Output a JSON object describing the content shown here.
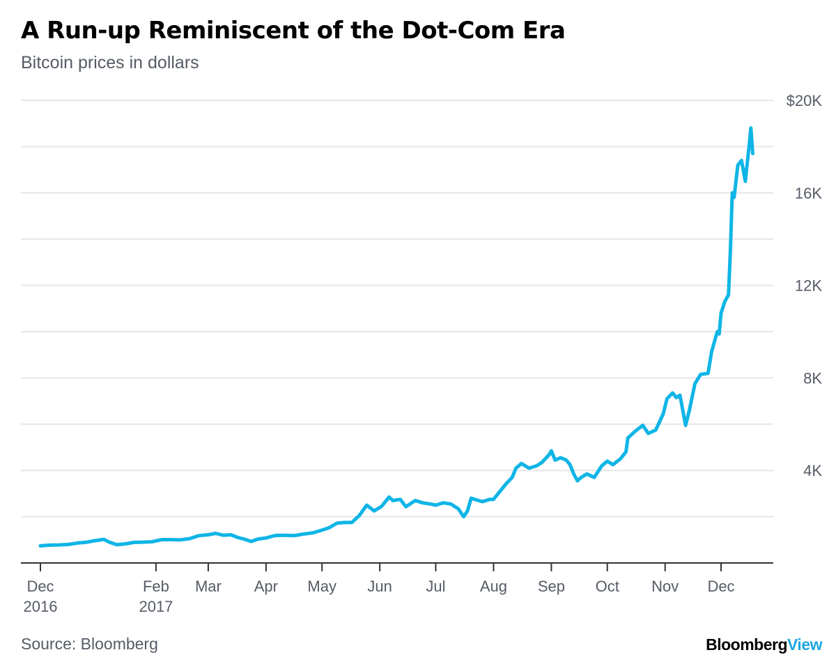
{
  "header": {
    "title": "A Run-up Reminiscent of the Dot-Com Era",
    "subtitle": "Bitcoin prices in dollars"
  },
  "footer": {
    "source": "Source: Bloomberg",
    "brand_part1": "Bloomberg",
    "brand_part2": "View"
  },
  "colors": {
    "line": "#0fb5e6",
    "grid": "#e6e6e9",
    "axis": "#333333",
    "text": "#555b66",
    "brand_accent": "#1fa6e0"
  },
  "chart_data": {
    "type": "line",
    "title": "A Run-up Reminiscent of the Dot-Com Era",
    "subtitle": "Bitcoin prices in dollars",
    "xlabel": "",
    "ylabel": "",
    "ylim": [
      0,
      20000
    ],
    "y_axis_position": "right",
    "grid": true,
    "y_ticks": [
      {
        "value": 4000,
        "label": "4K"
      },
      {
        "value": 8000,
        "label": "8K"
      },
      {
        "value": 12000,
        "label": "12K"
      },
      {
        "value": 16000,
        "label": "16K"
      },
      {
        "value": 20000,
        "label": "$20K"
      }
    ],
    "x_ticks": [
      {
        "date": "2016-12-01",
        "label": "Dec",
        "sublabel": "2016"
      },
      {
        "date": "2017-02-01",
        "label": "Feb",
        "sublabel": "2017"
      },
      {
        "date": "2017-03-01",
        "label": "Mar",
        "sublabel": ""
      },
      {
        "date": "2017-04-01",
        "label": "Apr",
        "sublabel": ""
      },
      {
        "date": "2017-05-01",
        "label": "May",
        "sublabel": ""
      },
      {
        "date": "2017-06-01",
        "label": "Jun",
        "sublabel": ""
      },
      {
        "date": "2017-07-01",
        "label": "Jul",
        "sublabel": ""
      },
      {
        "date": "2017-08-01",
        "label": "Aug",
        "sublabel": ""
      },
      {
        "date": "2017-09-01",
        "label": "Sep",
        "sublabel": ""
      },
      {
        "date": "2017-10-01",
        "label": "Oct",
        "sublabel": ""
      },
      {
        "date": "2017-11-01",
        "label": "Nov",
        "sublabel": ""
      },
      {
        "date": "2017-12-01",
        "label": "Dec",
        "sublabel": ""
      }
    ],
    "series": [
      {
        "points": [
          [
            "2016-12-01",
            740
          ],
          [
            "2016-12-06",
            770
          ],
          [
            "2016-12-11",
            780
          ],
          [
            "2016-12-16",
            800
          ],
          [
            "2016-12-21",
            860
          ],
          [
            "2016-12-26",
            900
          ],
          [
            "2016-12-30",
            960
          ],
          [
            "2017-01-04",
            1020
          ],
          [
            "2017-01-07",
            900
          ],
          [
            "2017-01-11",
            790
          ],
          [
            "2017-01-15",
            820
          ],
          [
            "2017-01-20",
            890
          ],
          [
            "2017-01-25",
            900
          ],
          [
            "2017-01-30",
            920
          ],
          [
            "2017-02-04",
            1010
          ],
          [
            "2017-02-09",
            1010
          ],
          [
            "2017-02-14",
            1000
          ],
          [
            "2017-02-19",
            1050
          ],
          [
            "2017-02-24",
            1180
          ],
          [
            "2017-03-01",
            1220
          ],
          [
            "2017-03-05",
            1280
          ],
          [
            "2017-03-09",
            1200
          ],
          [
            "2017-03-13",
            1220
          ],
          [
            "2017-03-17",
            1100
          ],
          [
            "2017-03-20",
            1040
          ],
          [
            "2017-03-24",
            930
          ],
          [
            "2017-03-28",
            1040
          ],
          [
            "2017-04-01",
            1080
          ],
          [
            "2017-04-06",
            1190
          ],
          [
            "2017-04-11",
            1200
          ],
          [
            "2017-04-16",
            1180
          ],
          [
            "2017-04-21",
            1250
          ],
          [
            "2017-04-26",
            1300
          ],
          [
            "2017-05-01",
            1420
          ],
          [
            "2017-05-05",
            1530
          ],
          [
            "2017-05-09",
            1720
          ],
          [
            "2017-05-13",
            1750
          ],
          [
            "2017-05-17",
            1750
          ],
          [
            "2017-05-21",
            2050
          ],
          [
            "2017-05-25",
            2500
          ],
          [
            "2017-05-29",
            2250
          ],
          [
            "2017-06-02",
            2450
          ],
          [
            "2017-06-06",
            2850
          ],
          [
            "2017-06-08",
            2700
          ],
          [
            "2017-06-12",
            2750
          ],
          [
            "2017-06-15",
            2430
          ],
          [
            "2017-06-20",
            2700
          ],
          [
            "2017-06-24",
            2600
          ],
          [
            "2017-06-28",
            2550
          ],
          [
            "2017-07-01",
            2500
          ],
          [
            "2017-07-05",
            2600
          ],
          [
            "2017-07-09",
            2550
          ],
          [
            "2017-07-13",
            2350
          ],
          [
            "2017-07-16",
            2000
          ],
          [
            "2017-07-18",
            2250
          ],
          [
            "2017-07-20",
            2800
          ],
          [
            "2017-07-22",
            2750
          ],
          [
            "2017-07-26",
            2650
          ],
          [
            "2017-07-30",
            2750
          ],
          [
            "2017-08-01",
            2750
          ],
          [
            "2017-08-05",
            3150
          ],
          [
            "2017-08-08",
            3450
          ],
          [
            "2017-08-11",
            3700
          ],
          [
            "2017-08-13",
            4100
          ],
          [
            "2017-08-16",
            4300
          ],
          [
            "2017-08-20",
            4100
          ],
          [
            "2017-08-24",
            4200
          ],
          [
            "2017-08-27",
            4350
          ],
          [
            "2017-08-31",
            4700
          ],
          [
            "2017-09-01",
            4850
          ],
          [
            "2017-09-03",
            4450
          ],
          [
            "2017-09-06",
            4550
          ],
          [
            "2017-09-09",
            4450
          ],
          [
            "2017-09-11",
            4250
          ],
          [
            "2017-09-13",
            3850
          ],
          [
            "2017-09-15",
            3550
          ],
          [
            "2017-09-17",
            3700
          ],
          [
            "2017-09-20",
            3850
          ],
          [
            "2017-09-24",
            3700
          ],
          [
            "2017-09-28",
            4200
          ],
          [
            "2017-10-01",
            4400
          ],
          [
            "2017-10-04",
            4250
          ],
          [
            "2017-10-08",
            4500
          ],
          [
            "2017-10-11",
            4800
          ],
          [
            "2017-10-12",
            5400
          ],
          [
            "2017-10-16",
            5700
          ],
          [
            "2017-10-20",
            5950
          ],
          [
            "2017-10-23",
            5600
          ],
          [
            "2017-10-27",
            5750
          ],
          [
            "2017-10-31",
            6450
          ],
          [
            "2017-11-02",
            7100
          ],
          [
            "2017-11-05",
            7350
          ],
          [
            "2017-11-07",
            7150
          ],
          [
            "2017-11-09",
            7250
          ],
          [
            "2017-11-12",
            5950
          ],
          [
            "2017-11-14",
            6600
          ],
          [
            "2017-11-17",
            7750
          ],
          [
            "2017-11-20",
            8150
          ],
          [
            "2017-11-24",
            8200
          ],
          [
            "2017-11-26",
            9150
          ],
          [
            "2017-11-29",
            10000
          ],
          [
            "2017-11-30",
            9900
          ],
          [
            "2017-12-01",
            10800
          ],
          [
            "2017-12-03",
            11300
          ],
          [
            "2017-12-05",
            11600
          ],
          [
            "2017-12-06",
            13500
          ],
          [
            "2017-12-07",
            16000
          ],
          [
            "2017-12-08",
            15800
          ],
          [
            "2017-12-10",
            17200
          ],
          [
            "2017-12-12",
            17400
          ],
          [
            "2017-12-14",
            16500
          ],
          [
            "2017-12-16",
            18000
          ],
          [
            "2017-12-17",
            18800
          ],
          [
            "2017-12-18",
            17700
          ]
        ]
      }
    ]
  }
}
